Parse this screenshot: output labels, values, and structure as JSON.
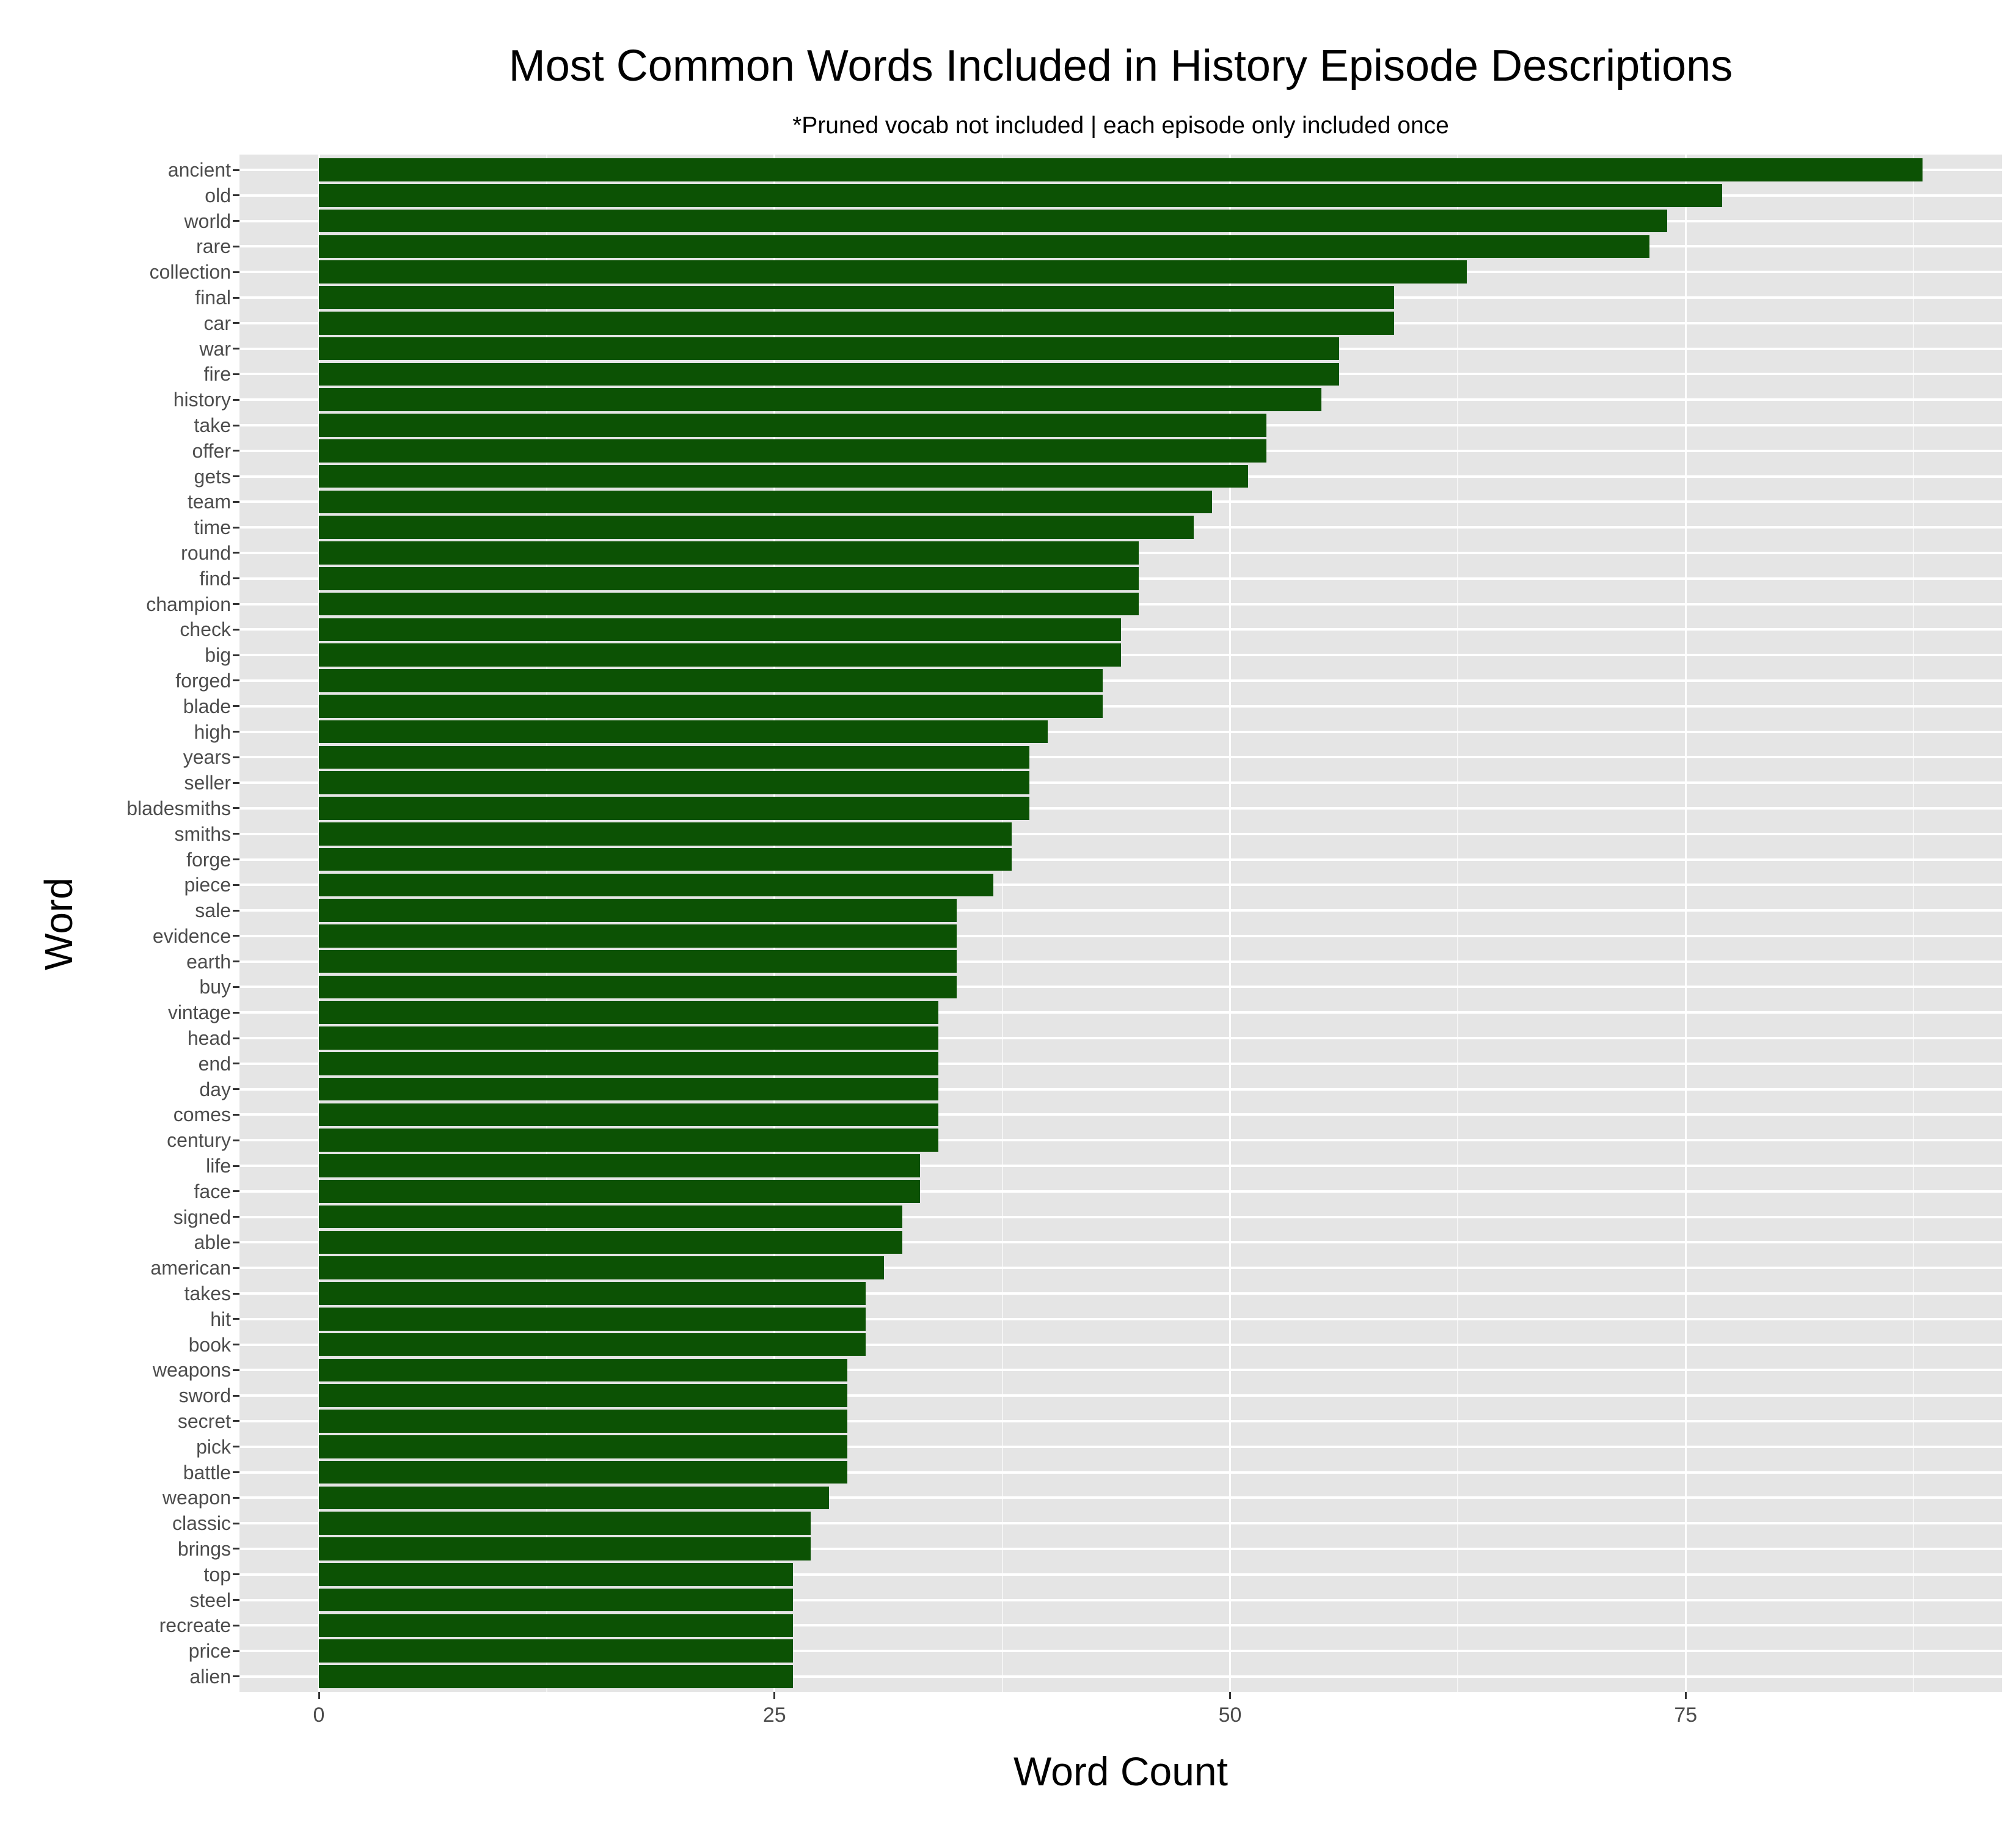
{
  "chart_data": {
    "type": "bar",
    "orientation": "horizontal",
    "title": "Most Common Words Included in History Episode Descriptions",
    "subtitle": "*Pruned vocab not included | each episode only included once",
    "xlabel": "Word Count",
    "ylabel": "Word",
    "xlim": [
      -4.36,
      92.36
    ],
    "x_ticks": [
      0,
      25,
      50,
      75
    ],
    "x_minor_ticks": [
      12.5,
      37.5,
      62.5,
      87.5
    ],
    "grid": true,
    "legend": null,
    "bar_color": "#0c5204",
    "panel_background": "#e5e5e5",
    "categories": [
      "ancient",
      "old",
      "world",
      "rare",
      "collection",
      "final",
      "car",
      "war",
      "fire",
      "history",
      "take",
      "offer",
      "gets",
      "team",
      "time",
      "round",
      "find",
      "champion",
      "check",
      "big",
      "forged",
      "blade",
      "high",
      "years",
      "seller",
      "bladesmiths",
      "smiths",
      "forge",
      "piece",
      "sale",
      "evidence",
      "earth",
      "buy",
      "vintage",
      "head",
      "end",
      "day",
      "comes",
      "century",
      "life",
      "face",
      "signed",
      "able",
      "american",
      "takes",
      "hit",
      "book",
      "weapons",
      "sword",
      "secret",
      "pick",
      "battle",
      "weapon",
      "classic",
      "brings",
      "top",
      "steel",
      "recreate",
      "price",
      "alien"
    ],
    "values": [
      88,
      77,
      74,
      73,
      63,
      59,
      59,
      56,
      56,
      55,
      52,
      52,
      51,
      49,
      48,
      45,
      45,
      45,
      44,
      44,
      43,
      43,
      40,
      39,
      39,
      39,
      38,
      38,
      37,
      35,
      35,
      35,
      35,
      34,
      34,
      34,
      34,
      34,
      34,
      33,
      33,
      32,
      32,
      31,
      30,
      30,
      30,
      29,
      29,
      29,
      29,
      29,
      28,
      27,
      27,
      26,
      26,
      26,
      26,
      26
    ]
  }
}
